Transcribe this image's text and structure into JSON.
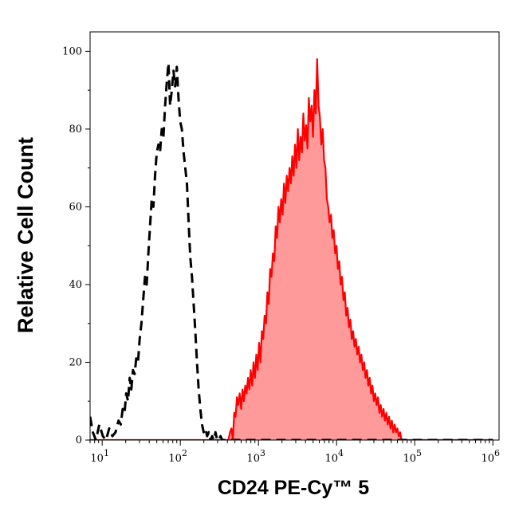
{
  "chart_data": {
    "type": "area",
    "title": "",
    "xlabel": "CD24 PE-Cy™ 5",
    "ylabel": "Relative Cell Count",
    "x_scale": "log",
    "xlim": [
      7,
      1200000
    ],
    "ylim": [
      0,
      105
    ],
    "x_ticks": [
      {
        "value": 10,
        "base": "10",
        "exp": "1"
      },
      {
        "value": 100,
        "base": "10",
        "exp": "2"
      },
      {
        "value": 1000,
        "base": "10",
        "exp": "3"
      },
      {
        "value": 10000,
        "base": "10",
        "exp": "4"
      },
      {
        "value": 100000,
        "base": "10",
        "exp": "5"
      },
      {
        "value": 1000000,
        "base": "10",
        "exp": "6"
      }
    ],
    "y_ticks": [
      {
        "value": 0,
        "label": "0"
      },
      {
        "value": 20,
        "label": "20"
      },
      {
        "value": 40,
        "label": "40"
      },
      {
        "value": 60,
        "label": "60"
      },
      {
        "value": 80,
        "label": "80"
      },
      {
        "value": 100,
        "label": "100"
      }
    ],
    "grid": false,
    "legend": "none",
    "series": [
      {
        "style": "dashed",
        "color": "#000000",
        "fill": "none",
        "points": [
          [
            7,
            6
          ],
          [
            7.6,
            2
          ],
          [
            8.3,
            0
          ],
          [
            9.2,
            4
          ],
          [
            10.2,
            1
          ],
          [
            11.2,
            0
          ],
          [
            12.3,
            3
          ],
          [
            13.5,
            1
          ],
          [
            14.8,
            2
          ],
          [
            16.2,
            5
          ],
          [
            17.3,
            4
          ],
          [
            18.3,
            8
          ],
          [
            19.3,
            7
          ],
          [
            20.3,
            12
          ],
          [
            21.4,
            10
          ],
          [
            22.5,
            16
          ],
          [
            23.6,
            13
          ],
          [
            24.8,
            18
          ],
          [
            26,
            17
          ],
          [
            27.3,
            21
          ],
          [
            28.7,
            20
          ],
          [
            30.2,
            26
          ],
          [
            31.8,
            30
          ],
          [
            33.5,
            36
          ],
          [
            35.3,
            42
          ],
          [
            37.1,
            40
          ],
          [
            39,
            48
          ],
          [
            41,
            55
          ],
          [
            43,
            62
          ],
          [
            45.2,
            60
          ],
          [
            47.5,
            68
          ],
          [
            49.9,
            74
          ],
          [
            52.4,
            76
          ],
          [
            55,
            74
          ],
          [
            57.8,
            80
          ],
          [
            60.8,
            78
          ],
          [
            63.9,
            86
          ],
          [
            67.1,
            92
          ],
          [
            70.5,
            97
          ],
          [
            74.1,
            86
          ],
          [
            77.8,
            90
          ],
          [
            81.8,
            95
          ],
          [
            85.9,
            91
          ],
          [
            90.2,
            96
          ],
          [
            94.8,
            88
          ],
          [
            99.6,
            82
          ],
          [
            104.7,
            80
          ],
          [
            110,
            74
          ],
          [
            115.6,
            70
          ],
          [
            121.5,
            66
          ],
          [
            127.6,
            56
          ],
          [
            134.1,
            47
          ],
          [
            140.9,
            42
          ],
          [
            148,
            35
          ],
          [
            155.5,
            28
          ],
          [
            163.4,
            20
          ],
          [
            171.7,
            13
          ],
          [
            180.4,
            8
          ],
          [
            189.6,
            4
          ],
          [
            199.2,
            2
          ],
          [
            209.3,
            3
          ],
          [
            220,
            1
          ],
          [
            231.1,
            2
          ],
          [
            242.8,
            0
          ],
          [
            255.2,
            1
          ],
          [
            268.1,
            0
          ],
          [
            281.7,
            2
          ],
          [
            296,
            0
          ],
          [
            311,
            0
          ],
          [
            327,
            1
          ],
          [
            344,
            0
          ],
          [
            520,
            0
          ],
          [
            760,
            0
          ],
          [
            1000,
            0
          ],
          [
            1400,
            0
          ],
          [
            2000,
            0
          ],
          [
            3000,
            0
          ],
          [
            4200,
            0
          ],
          [
            6000,
            0
          ],
          [
            9000,
            0
          ],
          [
            14000,
            0
          ],
          [
            20000,
            0
          ],
          [
            30000,
            0
          ],
          [
            50000,
            0
          ],
          [
            80000,
            0
          ],
          [
            130000,
            0
          ],
          [
            200000,
            0
          ],
          [
            350000,
            0
          ],
          [
            600000,
            0
          ],
          [
            1000000,
            0
          ]
        ]
      },
      {
        "style": "solid",
        "color": "#ff0000",
        "fill": "#ff9a9a",
        "points": [
          [
            7,
            0
          ],
          [
            50,
            0
          ],
          [
            150,
            0
          ],
          [
            300,
            0
          ],
          [
            412,
            0
          ],
          [
            432,
            2
          ],
          [
            451,
            3
          ],
          [
            470,
            0
          ],
          [
            490,
            7
          ],
          [
            510,
            6
          ],
          [
            530,
            11
          ],
          [
            550,
            9
          ],
          [
            575,
            12
          ],
          [
            600,
            8
          ],
          [
            625,
            13
          ],
          [
            650,
            10
          ],
          [
            677,
            14
          ],
          [
            705,
            12
          ],
          [
            735,
            16
          ],
          [
            765,
            13
          ],
          [
            797,
            18
          ],
          [
            830,
            14
          ],
          [
            865,
            20
          ],
          [
            901,
            16
          ],
          [
            938,
            22
          ],
          [
            977,
            18
          ],
          [
            1018,
            25
          ],
          [
            1060,
            20
          ],
          [
            1105,
            28
          ],
          [
            1151,
            26
          ],
          [
            1199,
            32
          ],
          [
            1249,
            30
          ],
          [
            1301,
            38
          ],
          [
            1355,
            35
          ],
          [
            1411,
            44
          ],
          [
            1470,
            42
          ],
          [
            1531,
            48
          ],
          [
            1595,
            46
          ],
          [
            1661,
            55
          ],
          [
            1730,
            52
          ],
          [
            1802,
            60
          ],
          [
            1877,
            56
          ],
          [
            1955,
            62
          ],
          [
            2036,
            58
          ],
          [
            2121,
            66
          ],
          [
            2209,
            61
          ],
          [
            2301,
            68
          ],
          [
            2397,
            64
          ],
          [
            2497,
            70
          ],
          [
            2600,
            66
          ],
          [
            2708,
            73
          ],
          [
            2821,
            68
          ],
          [
            2938,
            76
          ],
          [
            3060,
            70
          ],
          [
            3188,
            80
          ],
          [
            3320,
            72
          ],
          [
            3458,
            78
          ],
          [
            3602,
            74
          ],
          [
            3752,
            84
          ],
          [
            3908,
            77
          ],
          [
            4070,
            81
          ],
          [
            4239,
            75
          ],
          [
            4416,
            88
          ],
          [
            4600,
            82
          ],
          [
            4791,
            86
          ],
          [
            4990,
            78
          ],
          [
            5198,
            90
          ],
          [
            5414,
            84
          ],
          [
            5639,
            98
          ],
          [
            5873,
            86
          ],
          [
            6118,
            83
          ],
          [
            6372,
            76
          ],
          [
            6637,
            80
          ],
          [
            6913,
            72
          ],
          [
            7200,
            70
          ],
          [
            7500,
            62
          ],
          [
            7812,
            60
          ],
          [
            8137,
            56
          ],
          [
            8475,
            58
          ],
          [
            8827,
            52
          ],
          [
            9194,
            54
          ],
          [
            9577,
            48
          ],
          [
            9975,
            50
          ],
          [
            10390,
            44
          ],
          [
            10822,
            46
          ],
          [
            11272,
            40
          ],
          [
            11741,
            42
          ],
          [
            12229,
            36
          ],
          [
            12738,
            38
          ],
          [
            13268,
            32
          ],
          [
            13820,
            34
          ],
          [
            14394,
            29
          ],
          [
            14993,
            31
          ],
          [
            15617,
            26
          ],
          [
            16266,
            28
          ],
          [
            16943,
            24
          ],
          [
            17648,
            26
          ],
          [
            18382,
            22
          ],
          [
            19146,
            24
          ],
          [
            19942,
            20
          ],
          [
            20772,
            22
          ],
          [
            21636,
            18
          ],
          [
            22536,
            20
          ],
          [
            23473,
            16
          ],
          [
            24449,
            18
          ],
          [
            25466,
            14
          ],
          [
            26525,
            16
          ],
          [
            27628,
            12
          ],
          [
            28777,
            14
          ],
          [
            29974,
            10
          ],
          [
            31221,
            12
          ],
          [
            32519,
            9
          ],
          [
            33872,
            11
          ],
          [
            35280,
            7
          ],
          [
            36748,
            9
          ],
          [
            38276,
            6
          ],
          [
            39868,
            8
          ],
          [
            41526,
            5
          ],
          [
            43253,
            7
          ],
          [
            45052,
            4
          ],
          [
            46926,
            6
          ],
          [
            48877,
            3
          ],
          [
            50910,
            5
          ],
          [
            53027,
            2
          ],
          [
            55233,
            4
          ],
          [
            57530,
            2
          ],
          [
            59922,
            3
          ],
          [
            62414,
            1
          ],
          [
            65010,
            2
          ],
          [
            67714,
            0
          ],
          [
            75000,
            0
          ],
          [
            100000,
            0
          ],
          [
            200000,
            0
          ],
          [
            500000,
            0
          ],
          [
            1000000,
            0
          ]
        ]
      }
    ]
  }
}
